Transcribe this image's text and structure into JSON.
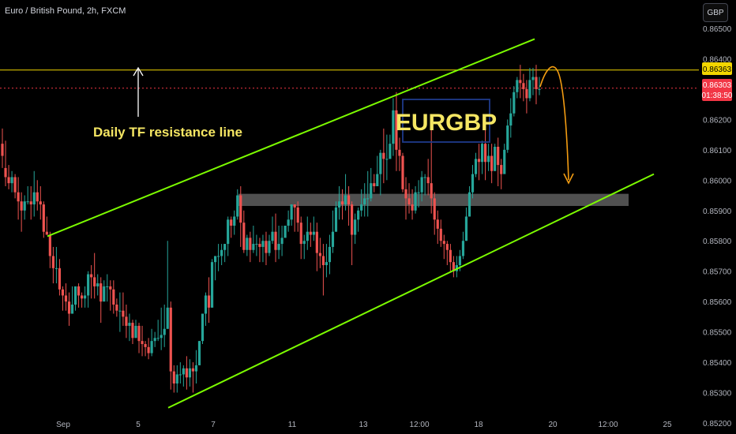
{
  "header": {
    "title": "Euro / British Pound, 2h, FXCM",
    "currency_button": "GBP"
  },
  "annotations": {
    "resistance_label": "Daily TF resistance line",
    "symbol_box": "EURGBP"
  },
  "price_tags": {
    "resistance": "0.86363",
    "last_price": "0.86303",
    "countdown": "01:38:50"
  },
  "colors": {
    "up": "#26a69a",
    "down": "#ef5350",
    "channel": "#7cfc00",
    "resistance": "#f2d600",
    "projection": "#f39c12",
    "zone": "#6b6b6b",
    "box_border": "#1e3a8a",
    "label_text": "#f5e663"
  },
  "chart_data": {
    "type": "candlestick",
    "title": "Euro / British Pound, 2h, FXCM",
    "ylim": [
      0.852,
      0.8655
    ],
    "y_ticks": [
      "0.86500",
      "0.86400",
      "0.86300",
      "0.86200",
      "0.86100",
      "0.86000",
      "0.85900",
      "0.85800",
      "0.85700",
      "0.85600",
      "0.85500",
      "0.85400",
      "0.85300",
      "0.85200"
    ],
    "x_ticks": [
      "Sep",
      "5",
      "7",
      "11",
      "13",
      "12:00",
      "18",
      "20",
      "12:00",
      "25"
    ],
    "resistance_level": 0.86363,
    "last_price": 0.86303,
    "support_zone": [
      0.85915,
      0.85955
    ],
    "channel_upper": [
      [
        0,
        0.85815
      ],
      [
        1,
        0.86465
      ]
    ],
    "channel_lower": [
      [
        0,
        0.8525
      ],
      [
        1,
        0.8602
      ]
    ],
    "candles": [
      [
        0.8612,
        0.8617,
        0.8608,
        0.8604
      ],
      [
        0.8604,
        0.8613,
        0.8601,
        0.8598
      ],
      [
        0.8601,
        0.8605,
        0.8599,
        0.8597
      ],
      [
        0.8599,
        0.8603,
        0.8601,
        0.8596
      ],
      [
        0.8601,
        0.8602,
        0.8596,
        0.8594
      ],
      [
        0.8596,
        0.8601,
        0.8593,
        0.8587
      ],
      [
        0.8593,
        0.8596,
        0.859,
        0.8583
      ],
      [
        0.859,
        0.8595,
        0.8593,
        0.8587
      ],
      [
        0.8593,
        0.8598,
        0.8593,
        0.8592
      ],
      [
        0.8593,
        0.8598,
        0.8592,
        0.8587
      ],
      [
        0.8592,
        0.8603,
        0.8596,
        0.8588
      ],
      [
        0.8596,
        0.86,
        0.8593,
        0.859
      ],
      [
        0.8593,
        0.8598,
        0.8592,
        0.8587
      ],
      [
        0.8592,
        0.8593,
        0.8583,
        0.8581
      ],
      [
        0.8583,
        0.8588,
        0.8582,
        0.8582
      ],
      [
        0.8582,
        0.8583,
        0.8575,
        0.8571
      ],
      [
        0.8575,
        0.8578,
        0.8571,
        0.8566
      ],
      [
        0.8571,
        0.8578,
        0.8571,
        0.8566
      ],
      [
        0.8571,
        0.8574,
        0.8564,
        0.8562
      ],
      [
        0.8564,
        0.8565,
        0.8562,
        0.8557
      ],
      [
        0.8562,
        0.8566,
        0.856,
        0.8557
      ],
      [
        0.856,
        0.8563,
        0.8556,
        0.8552
      ],
      [
        0.8556,
        0.8565,
        0.8559,
        0.8556
      ],
      [
        0.8559,
        0.8565,
        0.8565,
        0.8557
      ],
      [
        0.8565,
        0.8566,
        0.8562,
        0.8558
      ],
      [
        0.8562,
        0.8563,
        0.8561,
        0.8558
      ],
      [
        0.8561,
        0.8565,
        0.8562,
        0.8558
      ],
      [
        0.8562,
        0.857,
        0.8569,
        0.8558
      ],
      [
        0.8569,
        0.8572,
        0.8568,
        0.8561
      ],
      [
        0.8568,
        0.8576,
        0.8565,
        0.8561
      ],
      [
        0.8565,
        0.8569,
        0.8566,
        0.8562
      ],
      [
        0.8566,
        0.8568,
        0.856,
        0.8553
      ],
      [
        0.856,
        0.8567,
        0.8565,
        0.856
      ],
      [
        0.8565,
        0.8569,
        0.8565,
        0.856
      ],
      [
        0.8565,
        0.8567,
        0.8564,
        0.8557
      ],
      [
        0.8564,
        0.8567,
        0.8559,
        0.8556
      ],
      [
        0.8559,
        0.8561,
        0.8557,
        0.8555
      ],
      [
        0.8557,
        0.8563,
        0.8557,
        0.855
      ],
      [
        0.8557,
        0.8563,
        0.8555,
        0.8552
      ],
      [
        0.8555,
        0.8559,
        0.8552,
        0.8548
      ],
      [
        0.8552,
        0.8556,
        0.8553,
        0.8547
      ],
      [
        0.8553,
        0.8554,
        0.8548,
        0.8546
      ],
      [
        0.8548,
        0.8554,
        0.8552,
        0.8548
      ],
      [
        0.8552,
        0.8553,
        0.8547,
        0.8543
      ],
      [
        0.8547,
        0.8552,
        0.8546,
        0.8542
      ],
      [
        0.8546,
        0.8547,
        0.8545,
        0.8542
      ],
      [
        0.8545,
        0.8548,
        0.8543,
        0.8541
      ],
      [
        0.8543,
        0.8551,
        0.8547,
        0.8542
      ],
      [
        0.8547,
        0.855,
        0.8548,
        0.8545
      ],
      [
        0.8548,
        0.8554,
        0.8548,
        0.8547
      ],
      [
        0.8548,
        0.8558,
        0.8549,
        0.8544
      ],
      [
        0.8549,
        0.8559,
        0.8551,
        0.8545
      ],
      [
        0.8551,
        0.858,
        0.8558,
        0.8551
      ],
      [
        0.8558,
        0.856,
        0.8537,
        0.8531
      ],
      [
        0.8537,
        0.8539,
        0.8533,
        0.853
      ],
      [
        0.8533,
        0.8539,
        0.8536,
        0.853
      ],
      [
        0.8536,
        0.854,
        0.8536,
        0.8533
      ],
      [
        0.8536,
        0.8539,
        0.8538,
        0.8532
      ],
      [
        0.8538,
        0.8542,
        0.8535,
        0.8531
      ],
      [
        0.8535,
        0.8541,
        0.8538,
        0.8532
      ],
      [
        0.8538,
        0.854,
        0.8537,
        0.853
      ],
      [
        0.8537,
        0.8544,
        0.8539,
        0.8533
      ],
      [
        0.8539,
        0.8547,
        0.8547,
        0.8539
      ],
      [
        0.8547,
        0.8556,
        0.8556,
        0.8546
      ],
      [
        0.8556,
        0.8563,
        0.8562,
        0.8552
      ],
      [
        0.8562,
        0.8568,
        0.8558,
        0.8553
      ],
      [
        0.8558,
        0.8574,
        0.8573,
        0.8558
      ],
      [
        0.8573,
        0.8575,
        0.8575,
        0.8567
      ],
      [
        0.8575,
        0.8579,
        0.8575,
        0.857
      ],
      [
        0.8575,
        0.8579,
        0.8577,
        0.8572
      ],
      [
        0.8577,
        0.8579,
        0.8579,
        0.8573
      ],
      [
        0.8579,
        0.8588,
        0.8587,
        0.8575
      ],
      [
        0.8587,
        0.8588,
        0.8585,
        0.8581
      ],
      [
        0.8585,
        0.859,
        0.8588,
        0.8582
      ],
      [
        0.8588,
        0.8597,
        0.8595,
        0.8587
      ],
      [
        0.8595,
        0.8598,
        0.8586,
        0.8578
      ],
      [
        0.8586,
        0.859,
        0.8577,
        0.8576
      ],
      [
        0.8577,
        0.8582,
        0.8581,
        0.8575
      ],
      [
        0.8581,
        0.8583,
        0.8577,
        0.8573
      ],
      [
        0.8577,
        0.8585,
        0.8579,
        0.8576
      ],
      [
        0.8579,
        0.8582,
        0.8579,
        0.8575
      ],
      [
        0.8579,
        0.8581,
        0.8578,
        0.8573
      ],
      [
        0.8578,
        0.8582,
        0.858,
        0.8573
      ],
      [
        0.858,
        0.8583,
        0.8576,
        0.8572
      ],
      [
        0.8576,
        0.8582,
        0.858,
        0.8575
      ],
      [
        0.858,
        0.8588,
        0.8583,
        0.8579
      ],
      [
        0.8583,
        0.8589,
        0.8577,
        0.8573
      ],
      [
        0.8577,
        0.8585,
        0.8579,
        0.8574
      ],
      [
        0.8579,
        0.8585,
        0.8581,
        0.8575
      ],
      [
        0.8581,
        0.8585,
        0.8585,
        0.8581
      ],
      [
        0.8585,
        0.859,
        0.8587,
        0.8583
      ],
      [
        0.8587,
        0.8592,
        0.8592,
        0.8585
      ],
      [
        0.8592,
        0.8592,
        0.8591,
        0.8583
      ],
      [
        0.8591,
        0.8593,
        0.8586,
        0.8583
      ],
      [
        0.8586,
        0.8588,
        0.8579,
        0.8574
      ],
      [
        0.8579,
        0.8582,
        0.858,
        0.8574
      ],
      [
        0.858,
        0.8588,
        0.8583,
        0.8577
      ],
      [
        0.8583,
        0.8586,
        0.8582,
        0.8578
      ],
      [
        0.8582,
        0.8588,
        0.8583,
        0.858
      ],
      [
        0.8583,
        0.8586,
        0.8576,
        0.857
      ],
      [
        0.8576,
        0.8581,
        0.8575,
        0.8571
      ],
      [
        0.8575,
        0.8579,
        0.8572,
        0.8562
      ],
      [
        0.8572,
        0.8579,
        0.8573,
        0.8568
      ],
      [
        0.8573,
        0.8582,
        0.8578,
        0.8569
      ],
      [
        0.8578,
        0.859,
        0.8583,
        0.8576
      ],
      [
        0.8583,
        0.8593,
        0.8591,
        0.8583
      ],
      [
        0.8591,
        0.8598,
        0.8593,
        0.8587
      ],
      [
        0.8593,
        0.8597,
        0.8592,
        0.8587
      ],
      [
        0.8592,
        0.8602,
        0.8595,
        0.859
      ],
      [
        0.8595,
        0.8598,
        0.8592,
        0.8585
      ],
      [
        0.8592,
        0.8593,
        0.8582,
        0.8572
      ],
      [
        0.8582,
        0.8589,
        0.8587,
        0.8579
      ],
      [
        0.8587,
        0.8591,
        0.859,
        0.8583
      ],
      [
        0.859,
        0.8597,
        0.8592,
        0.8588
      ],
      [
        0.8592,
        0.8599,
        0.8594,
        0.8588
      ],
      [
        0.8594,
        0.8603,
        0.8594,
        0.8588
      ],
      [
        0.8594,
        0.8604,
        0.8599,
        0.8593
      ],
      [
        0.8599,
        0.8602,
        0.8598,
        0.8596
      ],
      [
        0.8598,
        0.8608,
        0.8602,
        0.8598
      ],
      [
        0.8602,
        0.861,
        0.8609,
        0.8595
      ],
      [
        0.8609,
        0.8617,
        0.8607,
        0.8599
      ],
      [
        0.8607,
        0.8615,
        0.8607,
        0.86
      ],
      [
        0.8607,
        0.8615,
        0.8612,
        0.8607
      ],
      [
        0.8612,
        0.8627,
        0.8623,
        0.8608
      ],
      [
        0.8623,
        0.8629,
        0.861,
        0.8603
      ],
      [
        0.861,
        0.8614,
        0.8608,
        0.8603
      ],
      [
        0.8608,
        0.8609,
        0.8597,
        0.8596
      ],
      [
        0.8597,
        0.8601,
        0.8594,
        0.8587
      ],
      [
        0.8594,
        0.8599,
        0.8592,
        0.8589
      ],
      [
        0.8592,
        0.8597,
        0.859,
        0.8587
      ],
      [
        0.859,
        0.8598,
        0.8596,
        0.8589
      ],
      [
        0.8596,
        0.86,
        0.8596,
        0.8591
      ],
      [
        0.8596,
        0.8603,
        0.8601,
        0.8593
      ],
      [
        0.8601,
        0.8602,
        0.8601,
        0.8595
      ],
      [
        0.8601,
        0.8607,
        0.8599,
        0.8595
      ],
      [
        0.8599,
        0.8618,
        0.8594,
        0.8589
      ],
      [
        0.8594,
        0.8596,
        0.8587,
        0.8582
      ],
      [
        0.8587,
        0.859,
        0.8584,
        0.8579
      ],
      [
        0.8584,
        0.8587,
        0.858,
        0.8578
      ],
      [
        0.858,
        0.8582,
        0.8579,
        0.8574
      ],
      [
        0.8579,
        0.858,
        0.8577,
        0.8572
      ],
      [
        0.8577,
        0.8579,
        0.8573,
        0.857
      ],
      [
        0.8573,
        0.8575,
        0.857,
        0.8568
      ],
      [
        0.857,
        0.8575,
        0.8572,
        0.8568
      ],
      [
        0.8572,
        0.8577,
        0.8575,
        0.857
      ],
      [
        0.8575,
        0.8583,
        0.858,
        0.8574
      ],
      [
        0.858,
        0.8591,
        0.8588,
        0.858
      ],
      [
        0.8588,
        0.8598,
        0.8596,
        0.8588
      ],
      [
        0.8596,
        0.8605,
        0.8602,
        0.8594
      ],
      [
        0.8602,
        0.8609,
        0.8607,
        0.8601
      ],
      [
        0.8607,
        0.8612,
        0.8606,
        0.86
      ],
      [
        0.8606,
        0.8613,
        0.8612,
        0.8602
      ],
      [
        0.8612,
        0.8618,
        0.8606,
        0.86
      ],
      [
        0.8606,
        0.8612,
        0.8608,
        0.8603
      ],
      [
        0.8608,
        0.8612,
        0.8603,
        0.8599
      ],
      [
        0.8603,
        0.8612,
        0.8611,
        0.8603
      ],
      [
        0.8611,
        0.8614,
        0.8605,
        0.8598
      ],
      [
        0.8605,
        0.8607,
        0.8602,
        0.8597
      ],
      [
        0.8602,
        0.8612,
        0.861,
        0.8603
      ],
      [
        0.861,
        0.862,
        0.8618,
        0.8609
      ],
      [
        0.8618,
        0.8627,
        0.8622,
        0.8614
      ],
      [
        0.8622,
        0.8631,
        0.8629,
        0.8621
      ],
      [
        0.8629,
        0.8634,
        0.8633,
        0.8627
      ],
      [
        0.8633,
        0.8638,
        0.8632,
        0.8627
      ],
      [
        0.8632,
        0.8635,
        0.863,
        0.8626
      ],
      [
        0.863,
        0.8633,
        0.8627,
        0.8622
      ],
      [
        0.8627,
        0.8637,
        0.8633,
        0.8626
      ],
      [
        0.8633,
        0.8637,
        0.8634,
        0.8628
      ],
      [
        0.8634,
        0.8638,
        0.863,
        0.8625
      ],
      [
        0.863,
        0.8634,
        0.863,
        0.8628
      ]
    ]
  }
}
